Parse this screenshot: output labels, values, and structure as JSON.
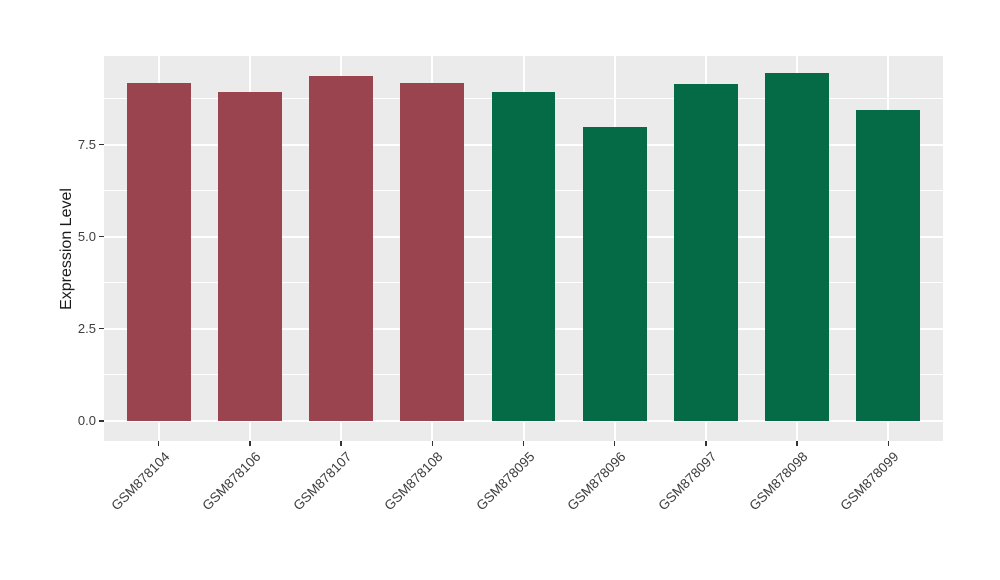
{
  "chart_data": {
    "type": "bar",
    "title": "",
    "xlabel": "",
    "ylabel": "Expression Level",
    "categories": [
      "GSM878104",
      "GSM878106",
      "GSM878107",
      "GSM878108",
      "GSM878095",
      "GSM878096",
      "GSM878097",
      "GSM878098",
      "GSM878099"
    ],
    "values": [
      9.17,
      8.92,
      9.36,
      9.17,
      8.92,
      7.97,
      9.15,
      9.44,
      8.44
    ],
    "bar_colors": [
      "#9A4450",
      "#9A4450",
      "#9A4450",
      "#9A4450",
      "#056A46",
      "#056A46",
      "#056A46",
      "#056A46",
      "#056A46"
    ],
    "yticks": {
      "values": [
        0,
        2.5,
        5,
        7.5
      ],
      "labels": [
        "0.0",
        "2.5",
        "5.0",
        "7.5"
      ]
    },
    "minor_yticks": [
      1.25,
      3.75,
      6.25,
      8.75
    ],
    "ylim": [
      -0.55,
      9.91
    ],
    "bar_width_fraction": 0.7,
    "x_expand": 0.6,
    "x_label_rotation_deg": 45,
    "legend": "none",
    "grid": true,
    "style": {
      "panel_bg": "#EBEBEB",
      "grid_color": "#FFFFFF",
      "axis_text_color": "#3d3d3d",
      "axis_title_color": "#1a1a1a",
      "tick_mark_color": "#333333",
      "figure_bg": "#FFFFFF"
    }
  }
}
